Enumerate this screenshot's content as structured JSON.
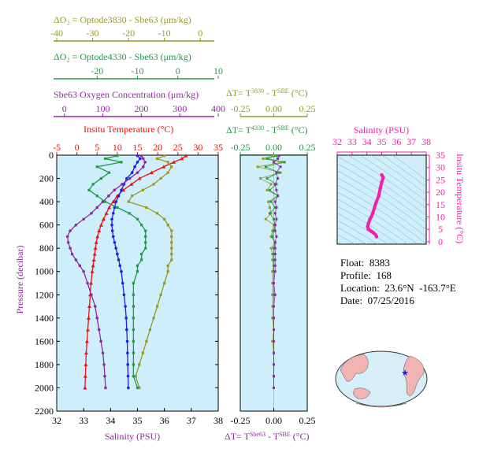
{
  "colors": {
    "olive": "#999922",
    "green": "#229944",
    "purple": "#8e2a9c",
    "red": "#ee1111",
    "blue": "#1a22dd",
    "magenta": "#ee22aa",
    "panel_bg": "#cdeefa",
    "land": "#f2b3b3",
    "ocean": "#d6eef8"
  },
  "axes": {
    "do2_3830": {
      "label": "ΔO₂ = Optode3830 - Sbe63   (μm/kg)",
      "ticks": [
        "-40",
        "-30",
        "-20",
        "-10",
        "0"
      ],
      "range": [
        -40,
        5
      ]
    },
    "do2_4330": {
      "label": "ΔO₂ = Optode4330 - Sbe63   (μm/kg)",
      "ticks": [
        "-20",
        "-10",
        "0",
        "10"
      ],
      "range": [
        -30,
        10
      ]
    },
    "sbe63": {
      "label": "Sbe63 Oxygen Concentration  (μm/kg)",
      "ticks": [
        "0",
        "100",
        "200",
        "300",
        "400"
      ],
      "range": [
        -20,
        400
      ]
    },
    "temp": {
      "label": "Insitu Temperature (°C)",
      "ticks": [
        "-5",
        "0",
        "5",
        "10",
        "15",
        "20",
        "25",
        "30",
        "35"
      ],
      "range": [
        -5,
        35
      ]
    },
    "salinity": {
      "label": "Salinity (PSU)",
      "ticks": [
        "32",
        "33",
        "34",
        "35",
        "36",
        "37",
        "38"
      ],
      "range": [
        32,
        38
      ]
    },
    "pressure": {
      "label": "Pressure (decibar)",
      "ticks": [
        "0",
        "200",
        "400",
        "600",
        "800",
        "1000",
        "1200",
        "1400",
        "1600",
        "1800",
        "2000",
        "2200"
      ],
      "range": [
        0,
        2200
      ]
    },
    "dt3830": {
      "label_prefix": "ΔT= T",
      "label_sup1": "3830",
      "label_mid": " - T",
      "label_sup2": "SBE",
      "label_suffix": " (°C)",
      "ticks": [
        "-0.25",
        "0.00",
        "0.25"
      ],
      "range": [
        -0.25,
        0.25
      ]
    },
    "dt4330": {
      "label_prefix": "ΔT= T",
      "label_sup1": "4330",
      "label_mid": " - T",
      "label_sup2": "SBE",
      "label_suffix": " (°C)",
      "ticks": [
        "-0.25",
        "0.00",
        "0.25"
      ],
      "range": [
        -0.25,
        0.25
      ]
    },
    "dtsbe63": {
      "label_prefix": "ΔT= T",
      "label_sup1": "Sbe63",
      "label_mid": " - T",
      "label_sup2": "SBE",
      "label_suffix": " (°C)",
      "ticks": [
        "-0.25",
        "0.00",
        "0.25"
      ],
      "range": [
        -0.25,
        0.25
      ]
    },
    "ts_salinity": {
      "label": "Salinity (PSU)",
      "ticks": [
        "32",
        "33",
        "34",
        "35",
        "36",
        "37",
        "38"
      ],
      "range": [
        32,
        38
      ]
    },
    "ts_temp": {
      "label": "Insitu Temperature (°C)",
      "ticks": [
        "0",
        "5",
        "10",
        "15",
        "20",
        "25",
        "30",
        "35"
      ],
      "range": [
        -1,
        35
      ]
    }
  },
  "info": {
    "float": "Float:  8383",
    "profile": "Profile:  168",
    "location": "Location:  23.6°N  -163.7°E",
    "date": "Date:  07/25/2016"
  },
  "chart_data": [
    {
      "type": "line",
      "panel": "profiles",
      "y_axis": "Pressure (decibar)",
      "y": [
        5,
        30,
        60,
        100,
        150,
        200,
        250,
        300,
        350,
        400,
        450,
        500,
        550,
        600,
        650,
        700,
        750,
        800,
        850,
        900,
        950,
        1000,
        1100,
        1200,
        1300,
        1400,
        1500,
        1600,
        1700,
        1800,
        1900,
        2000
      ],
      "series": [
        {
          "name": "Insitu Temperature",
          "axis": "temp",
          "color_key": "red",
          "values": [
            27.0,
            26.0,
            24.0,
            21.5,
            18.5,
            15.5,
            13.5,
            11.5,
            10.0,
            9.0,
            8.0,
            7.3,
            6.6,
            6.0,
            5.5,
            5.1,
            4.8,
            4.6,
            4.4,
            4.2,
            4.0,
            3.8,
            3.5,
            3.3,
            3.1,
            2.9,
            2.7,
            2.5,
            2.3,
            2.2,
            2.1,
            2.0
          ]
        },
        {
          "name": "Salinity",
          "axis": "salinity",
          "color_key": "blue",
          "values": [
            35.0,
            35.1,
            35.0,
            34.9,
            34.8,
            34.6,
            34.5,
            34.4,
            34.3,
            34.2,
            34.15,
            34.1,
            34.05,
            34.05,
            34.07,
            34.1,
            34.15,
            34.2,
            34.25,
            34.3,
            34.35,
            34.4,
            34.45,
            34.5,
            34.55,
            34.58,
            34.6,
            34.62,
            34.63,
            34.64,
            34.65,
            34.66
          ]
        },
        {
          "name": "Sbe63 Oxygen Concentration",
          "axis": "sbe63",
          "color_key": "purple",
          "values": [
            200,
            205,
            210,
            205,
            190,
            170,
            150,
            130,
            115,
            100,
            85,
            70,
            50,
            30,
            15,
            8,
            10,
            15,
            20,
            30,
            40,
            50,
            60,
            70,
            80,
            85,
            90,
            95,
            100,
            103,
            105,
            107
          ]
        },
        {
          "name": "ΔO₂ Optode3830 - Sbe63",
          "axis": "do2_3830",
          "color_key": "olive",
          "values": [
            -10,
            -12,
            -9,
            -8,
            -9,
            -11,
            -13,
            -16,
            -19,
            -20,
            -15,
            -12,
            -10,
            -9,
            -8,
            -8,
            -8,
            -8,
            -8,
            -8,
            -9,
            -9,
            -10,
            -11,
            -12,
            -13,
            -14,
            -15,
            -16,
            -17,
            -18,
            -17
          ]
        },
        {
          "name": "ΔO₂ Optode4330 - Sbe63",
          "axis": "do2_4330",
          "color_key": "green",
          "values": [
            -15,
            -18,
            -14,
            -20,
            -17,
            -19,
            -21,
            -22,
            -20,
            -18,
            -15,
            -12,
            -10,
            -9,
            -8,
            -8,
            -8,
            -8,
            -9,
            -9,
            -10,
            -10,
            -11,
            -11,
            -11,
            -11,
            -11,
            -11,
            -11,
            -11,
            -11,
            -10
          ]
        }
      ]
    },
    {
      "type": "scatter",
      "panel": "delta_t",
      "y_axis": "Pressure (decibar)",
      "y": [
        5,
        30,
        60,
        100,
        150,
        200,
        250,
        300,
        350,
        400,
        450,
        500,
        550,
        600,
        650,
        700,
        750,
        800,
        850,
        900,
        950,
        1000,
        1100,
        1200,
        1300,
        1400,
        1500,
        1600,
        1700,
        1800,
        1900,
        2000
      ],
      "series": [
        {
          "name": "ΔT T3830 - TSBE",
          "axis": "dt3830",
          "color_key": "olive",
          "values": [
            0.0,
            -0.08,
            0.06,
            -0.12,
            0.05,
            -0.1,
            -0.02,
            -0.05,
            0.03,
            -0.04,
            -0.03,
            -0.02,
            -0.06,
            0.0,
            -0.01,
            -0.02,
            0.01,
            -0.02,
            -0.01,
            -0.01,
            0.0,
            -0.01,
            -0.01,
            -0.01,
            -0.01,
            -0.01,
            0.0,
            -0.01,
            0.0,
            0.0,
            0.0,
            0.0
          ]
        },
        {
          "name": "ΔT T4330 - TSBE",
          "axis": "dt4330",
          "color_key": "green",
          "values": [
            0.02,
            -0.05,
            0.08,
            -0.06,
            0.04,
            -0.05,
            0.02,
            -0.03,
            0.03,
            -0.02,
            0.01,
            -0.03,
            0.0,
            0.01,
            0.0,
            -0.01,
            0.01,
            0.0,
            0.0,
            0.0,
            0.0,
            0.0,
            0.0,
            0.0,
            0.0,
            0.0,
            0.0,
            0.0,
            0.0,
            0.0,
            0.0,
            0.0
          ]
        },
        {
          "name": "ΔT TSbe63 - TSBE",
          "axis": "dtsbe63",
          "color_key": "purple",
          "values": [
            0.04,
            0.03,
            0.0,
            0.05,
            0.02,
            0.03,
            0.01,
            0.02,
            0.03,
            0.01,
            0.02,
            0.01,
            0.02,
            0.01,
            0.01,
            0.02,
            0.01,
            0.01,
            0.01,
            0.01,
            0.01,
            0.01,
            0.0,
            0.01,
            0.0,
            0.0,
            0.0,
            0.0,
            0.0,
            0.0,
            0.0,
            0.0
          ]
        }
      ]
    },
    {
      "type": "line",
      "panel": "ts_diagram",
      "series": [
        {
          "name": "T-S",
          "color_key": "magenta",
          "x_salinity": [
            35.0,
            35.1,
            35.0,
            34.9,
            34.8,
            34.6,
            34.5,
            34.4,
            34.3,
            34.2,
            34.1,
            34.05,
            34.1,
            34.2,
            34.3,
            34.4,
            34.5,
            34.6,
            34.65
          ],
          "y_temp": [
            27.0,
            26.0,
            24.0,
            21.5,
            18.5,
            15.5,
            13.5,
            11.5,
            10.0,
            9.0,
            7.3,
            6.0,
            5.1,
            4.6,
            4.2,
            3.8,
            3.3,
            2.7,
            2.0
          ]
        }
      ]
    }
  ]
}
